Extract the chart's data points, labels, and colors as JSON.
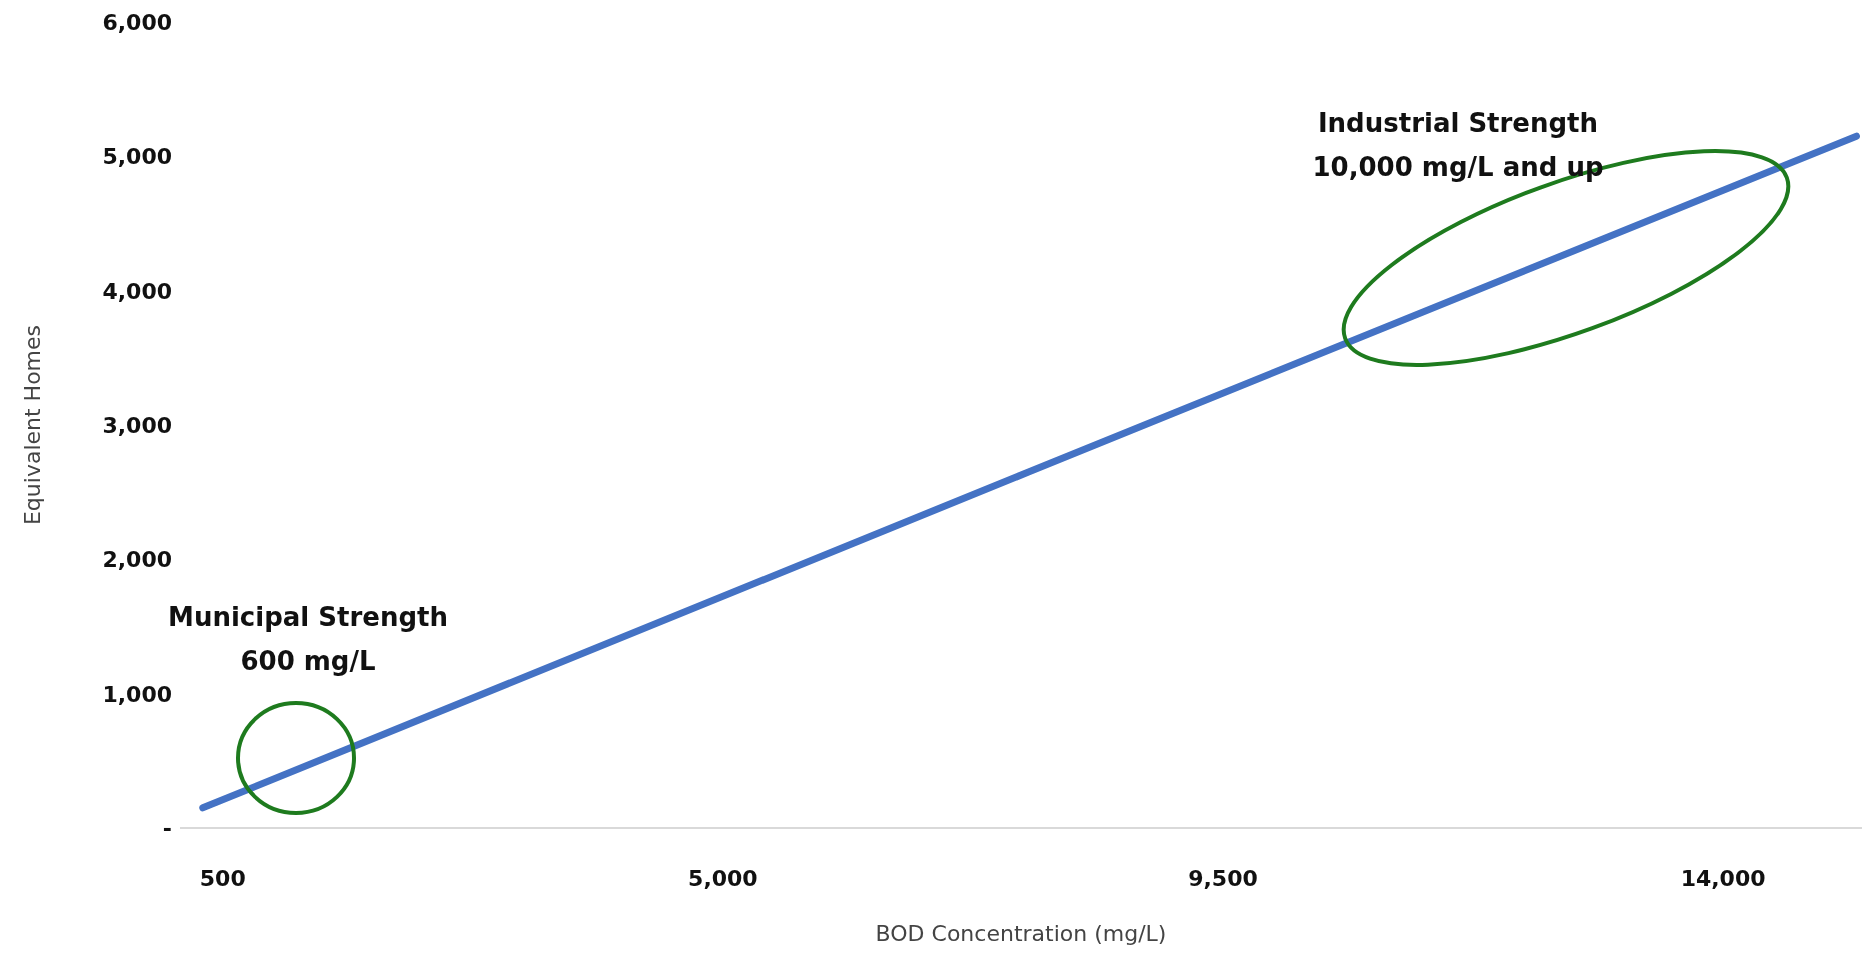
{
  "chart_data": {
    "type": "line",
    "xlabel": "BOD Concentration (mg/L)",
    "ylabel": "Equivalent Homes",
    "series": [
      {
        "color": "#4472c4",
        "x": [
          320,
          7750,
          15200
        ],
        "values": [
          150,
          2650,
          5150
        ]
      }
    ],
    "xlim": [
      115,
      15250
    ],
    "xticks": [
      500,
      {
        "value": 5000,
        "label": "5,000"
      },
      {
        "value": 9500,
        "label": "9,500"
      },
      {
        "value": 14000,
        "label": "14,000"
      }
    ],
    "ylim": [
      0,
      6000
    ],
    "yticks": [
      {
        "value": 0,
        "label": "-"
      },
      {
        "value": 1000,
        "label": "1,000"
      },
      {
        "value": 2000,
        "label": "2,000"
      },
      {
        "value": 3000,
        "label": "3,000"
      },
      {
        "value": 4000,
        "label": "4,000"
      },
      {
        "value": 5000,
        "label": "5,000"
      },
      {
        "value": 6000,
        "label": "6,000"
      }
    ],
    "grid": false,
    "marker": "none",
    "line_style": "solid",
    "annotations": [
      "Municipal Strength\n600 mg/L",
      "Industrial Strength\n10,000 mg/L and up"
    ]
  }
}
